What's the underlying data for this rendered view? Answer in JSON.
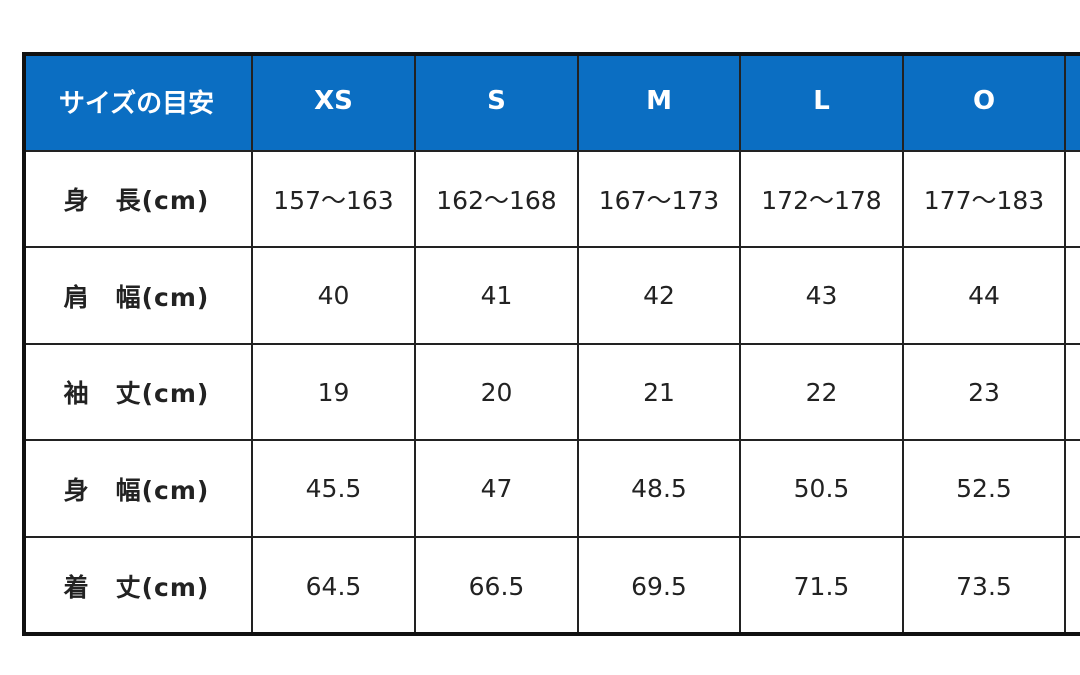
{
  "table": {
    "header": [
      "サイズの目安",
      "XS",
      "S",
      "M",
      "L",
      "O"
    ],
    "rows": [
      [
        "身　長(cm)",
        "157～163",
        "162～168",
        "167～173",
        "172～178",
        "177～183"
      ],
      [
        "肩　幅(cm)",
        "40",
        "41",
        "42",
        "43",
        "44"
      ],
      [
        "袖　丈(cm)",
        "19",
        "20",
        "21",
        "22",
        "23"
      ],
      [
        "身　幅(cm)",
        "45.5",
        "47",
        "48.5",
        "50.5",
        "52.5"
      ],
      [
        "着　丈(cm)",
        "64.5",
        "66.5",
        "69.5",
        "71.5",
        "73.5"
      ]
    ]
  }
}
